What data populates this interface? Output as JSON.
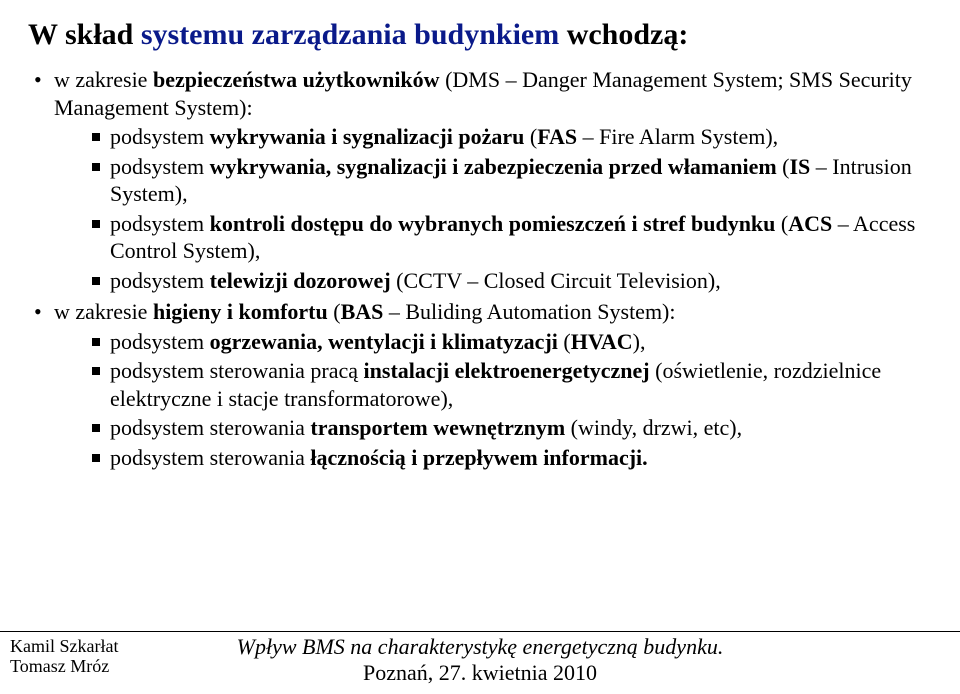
{
  "title_prefix": "W skład ",
  "title_blue": "systemu zarządzania budynkiem",
  "title_suffix": " wchodzą:",
  "sec1_intro_a": "w zakresie ",
  "sec1_intro_b": "bezpieczeństwa użytkowników",
  "sec1_intro_c": " (DMS – Danger Management System; SMS Security Management System):",
  "s1i1_a": "podsystem ",
  "s1i1_b": "wykrywania i sygnalizacji pożaru",
  "s1i1_c": " (",
  "s1i1_d": "FAS",
  "s1i1_e": " – Fire Alarm System),",
  "s1i2_a": "podsystem ",
  "s1i2_b": "wykrywania, sygnalizacji i zabezpieczenia przed włamaniem ",
  "s1i2_c": "(",
  "s1i2_d": "IS",
  "s1i2_e": " – Intrusion System),",
  "s1i3_a": "podsystem ",
  "s1i3_b": "kontroli dostępu do wybranych pomieszczeń i stref budynku ",
  "s1i3_c": "(",
  "s1i3_d": "ACS",
  "s1i3_e": " – Access Control System),",
  "s1i4_a": "podsystem ",
  "s1i4_b": "telewizji dozorowej",
  "s1i4_c": " (CCTV – Closed Circuit Television),",
  "sec2_intro_a": "w zakresie ",
  "sec2_intro_b": "higieny i komfortu",
  "sec2_intro_c": " (",
  "sec2_intro_d": "BAS",
  "sec2_intro_e": " – Buliding Automation System):",
  "s2i1_a": "podsystem ",
  "s2i1_b": "ogrzewania, wentylacji i klimatyzacji",
  "s2i1_c": " (",
  "s2i1_d": "HVAC",
  "s2i1_e": "),",
  "s2i2_a": "podsystem sterowania pracą ",
  "s2i2_b": "instalacji elektroenergetycznej",
  "s2i2_c": " (oświetlenie, rozdzielnice elektryczne i stacje transformatorowe),",
  "s2i3_a": "podsystem sterowania ",
  "s2i3_b": "transportem wewnętrznym",
  "s2i3_c": " (windy, drzwi, etc),",
  "s2i4_a": "podsystem sterowania ",
  "s2i4_b": "łącznością i przepływem informacji.",
  "footer_author1": "Kamil Szkarłat",
  "footer_author2": "Tomasz Mróz",
  "footer_title": "Wpływ BMS na charakterystykę energetyczną budynku.",
  "footer_date": "Poznań, 27. kwietnia 2010"
}
